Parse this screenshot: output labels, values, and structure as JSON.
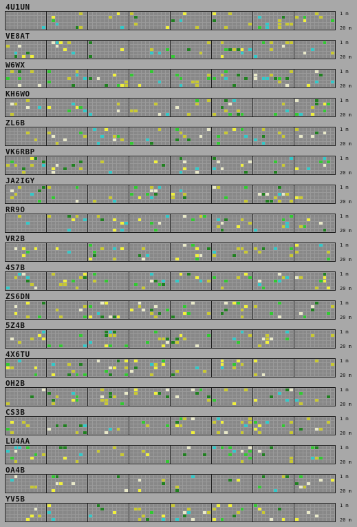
{
  "band_labels": {
    "top": "1 m",
    "bottom": "20 m"
  },
  "colors": {
    "background": "#a8a8a8",
    "cell_idle": "#888888",
    "grid_line": "#9a9a9a",
    "block_border": "#1e1e1e",
    "signal_yellow": "#c8c832",
    "signal_bright_yellow": "#f0f03c",
    "signal_green": "#32c832",
    "signal_cyan": "#32c8c8",
    "signal_white": "#e8e8c8",
    "signal_dark_green": "#208020"
  },
  "stations": [
    {
      "callsign": "4U1UN"
    },
    {
      "callsign": "VE8AT"
    },
    {
      "callsign": "W6WX"
    },
    {
      "callsign": "KH6WO"
    },
    {
      "callsign": "ZL6B"
    },
    {
      "callsign": "VK6RBP"
    },
    {
      "callsign": "JA2IGY"
    },
    {
      "callsign": "RR9O"
    },
    {
      "callsign": "VR2B"
    },
    {
      "callsign": "4S7B"
    },
    {
      "callsign": "ZS6DN"
    },
    {
      "callsign": "5Z4B"
    },
    {
      "callsign": "4X6TU"
    },
    {
      "callsign": "OH2B"
    },
    {
      "callsign": "CS3B"
    },
    {
      "callsign": "LU4AA"
    },
    {
      "callsign": "OA4B"
    },
    {
      "callsign": "YV5B"
    }
  ]
}
